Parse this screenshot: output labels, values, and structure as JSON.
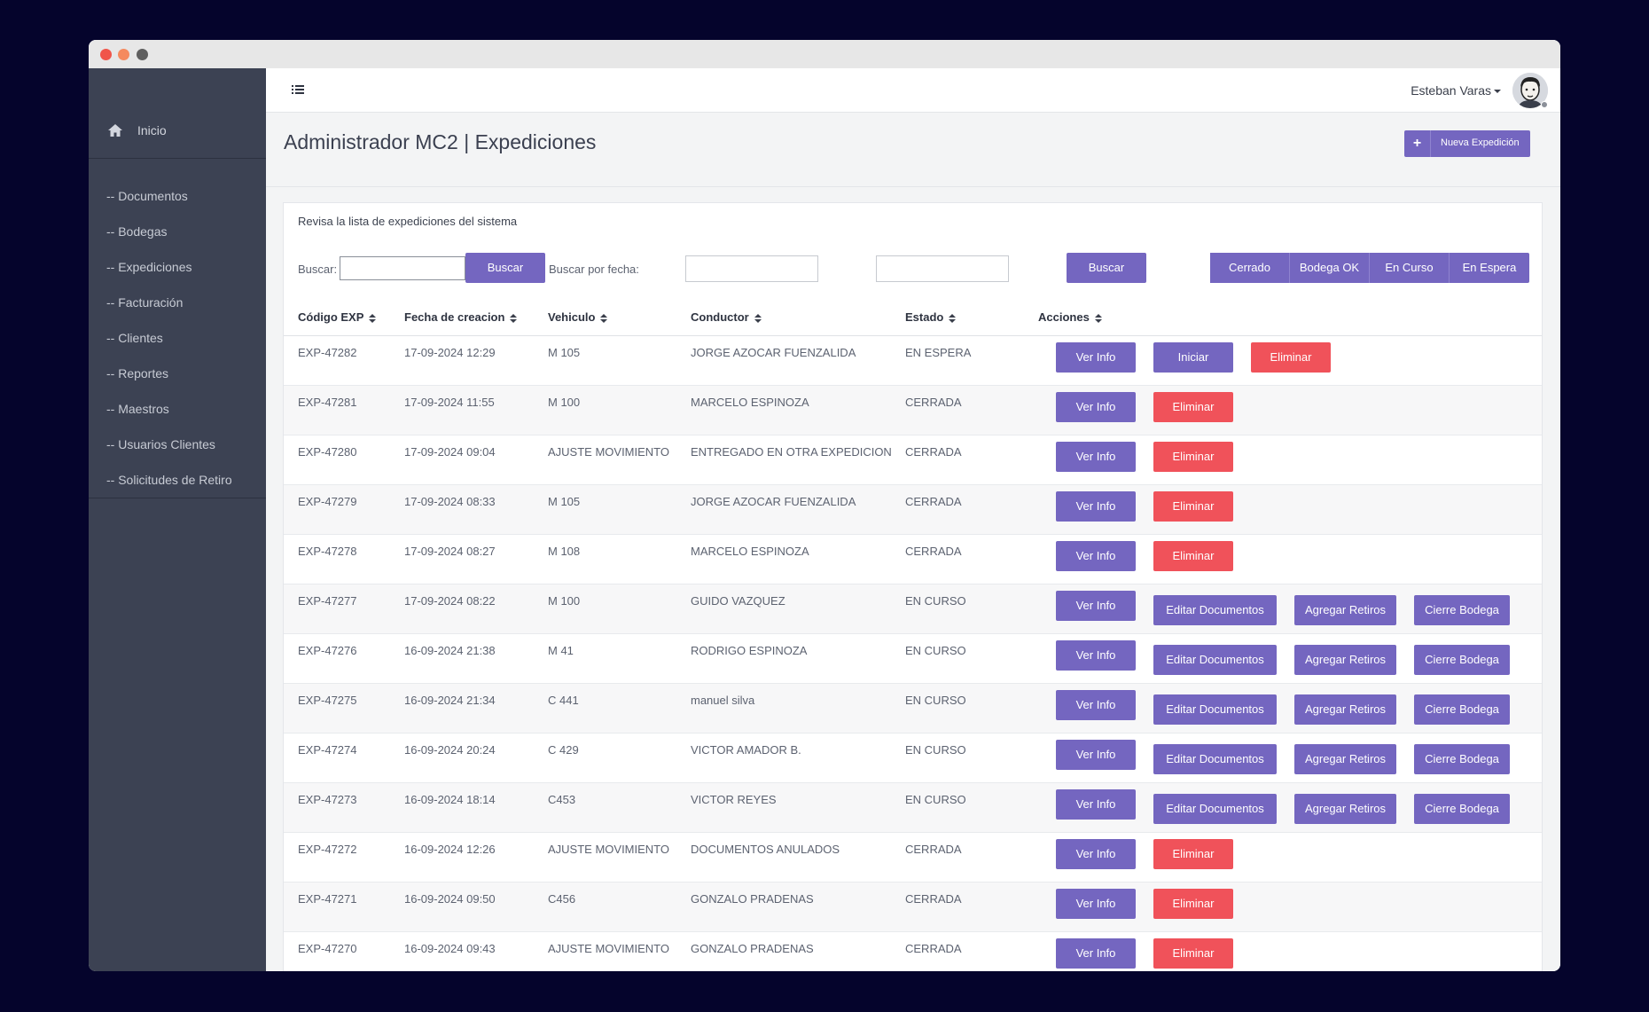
{
  "window": {
    "controls": [
      "close",
      "minimize",
      "zoom"
    ]
  },
  "sidebar": {
    "home": {
      "icon": "home-icon",
      "label": "Inicio"
    },
    "items": [
      {
        "label": "-- Documentos"
      },
      {
        "label": "-- Bodegas"
      },
      {
        "label": "-- Expediciones"
      },
      {
        "label": "-- Facturación"
      },
      {
        "label": "-- Clientes"
      },
      {
        "label": "-- Reportes"
      },
      {
        "label": "-- Maestros"
      },
      {
        "label": "-- Usuarios Clientes"
      },
      {
        "label": "-- Solicitudes de Retiro"
      }
    ]
  },
  "topbar": {
    "menu_icon": "menu-toggle-icon",
    "user_name": "Esteban Varas",
    "avatar_icon": "user-avatar"
  },
  "page": {
    "title": "Administrador MC2 | Expediciones",
    "new_button": {
      "icon": "plus-icon",
      "label": "Nueva Expedición"
    }
  },
  "panel": {
    "heading": "Revisa la lista de expediciones del sistema",
    "filters": {
      "search_label": "Buscar:",
      "search_value": "",
      "search_button": "Buscar",
      "date_label": "Buscar por fecha:",
      "date_from_value": "",
      "date_to_value": "",
      "date_button": "Buscar",
      "status_buttons": [
        "Cerrado",
        "Bodega OK",
        "En Curso",
        "En Espera"
      ]
    },
    "columns": [
      "Código EXP",
      "Fecha de creacion",
      "Vehiculo",
      "Conductor",
      "Estado",
      "Acciones"
    ],
    "rows": [
      {
        "code": "EXP-47282",
        "date": "17-09-2024 12:29",
        "vehicle": "M 105",
        "driver": "JORGE AZOCAR FUENZALIDA",
        "status": "EN ESPERA",
        "actions": [
          "Ver Info",
          "Iniciar",
          "Eliminar"
        ]
      },
      {
        "code": "EXP-47281",
        "date": "17-09-2024 11:55",
        "vehicle": "M 100",
        "driver": "MARCELO ESPINOZA",
        "status": "CERRADA",
        "actions": [
          "Ver Info",
          "Eliminar"
        ]
      },
      {
        "code": "EXP-47280",
        "date": "17-09-2024 09:04",
        "vehicle": "AJUSTE MOVIMIENTO",
        "driver": "ENTREGADO EN OTRA EXPEDICION",
        "status": "CERRADA",
        "actions": [
          "Ver Info",
          "Eliminar"
        ]
      },
      {
        "code": "EXP-47279",
        "date": "17-09-2024 08:33",
        "vehicle": "M 105",
        "driver": "JORGE AZOCAR FUENZALIDA",
        "status": "CERRADA",
        "actions": [
          "Ver Info",
          "Eliminar"
        ]
      },
      {
        "code": "EXP-47278",
        "date": "17-09-2024 08:27",
        "vehicle": "M 108",
        "driver": "MARCELO ESPINOZA",
        "status": "CERRADA",
        "actions": [
          "Ver Info",
          "Eliminar"
        ]
      },
      {
        "code": "EXP-47277",
        "date": "17-09-2024 08:22",
        "vehicle": "M 100",
        "driver": "GUIDO VAZQUEZ",
        "status": "EN CURSO",
        "actions": [
          "Ver Info",
          "Editar Documentos",
          "Agregar Retiros",
          "Cierre Bodega"
        ]
      },
      {
        "code": "EXP-47276",
        "date": "16-09-2024 21:38",
        "vehicle": "M 41",
        "driver": "RODRIGO ESPINOZA",
        "status": "EN CURSO",
        "actions": [
          "Ver Info",
          "Editar Documentos",
          "Agregar Retiros",
          "Cierre Bodega"
        ]
      },
      {
        "code": "EXP-47275",
        "date": "16-09-2024 21:34",
        "vehicle": "C 441",
        "driver": "manuel silva",
        "status": "EN CURSO",
        "actions": [
          "Ver Info",
          "Editar Documentos",
          "Agregar Retiros",
          "Cierre Bodega"
        ]
      },
      {
        "code": "EXP-47274",
        "date": "16-09-2024 20:24",
        "vehicle": "C 429",
        "driver": "VICTOR AMADOR B.",
        "status": "EN CURSO",
        "actions": [
          "Ver Info",
          "Editar Documentos",
          "Agregar Retiros",
          "Cierre Bodega"
        ]
      },
      {
        "code": "EXP-47273",
        "date": "16-09-2024 18:14",
        "vehicle": "C453",
        "driver": "VICTOR REYES",
        "status": "EN CURSO",
        "actions": [
          "Ver Info",
          "Editar Documentos",
          "Agregar Retiros",
          "Cierre Bodega"
        ]
      },
      {
        "code": "EXP-47272",
        "date": "16-09-2024 12:26",
        "vehicle": "AJUSTE MOVIMIENTO",
        "driver": "DOCUMENTOS ANULADOS",
        "status": "CERRADA",
        "actions": [
          "Ver Info",
          "Eliminar"
        ]
      },
      {
        "code": "EXP-47271",
        "date": "16-09-2024 09:50",
        "vehicle": "C456",
        "driver": "GONZALO PRADENAS",
        "status": "CERRADA",
        "actions": [
          "Ver Info",
          "Eliminar"
        ]
      },
      {
        "code": "EXP-47270",
        "date": "16-09-2024 09:43",
        "vehicle": "AJUSTE MOVIMIENTO",
        "driver": "GONZALO PRADENAS",
        "status": "CERRADA",
        "actions": [
          "Ver Info",
          "Eliminar"
        ]
      }
    ]
  },
  "colors": {
    "background": "#05042c",
    "sidebar": "#3c4253",
    "primary": "#7466c0",
    "danger": "#f0525a"
  }
}
